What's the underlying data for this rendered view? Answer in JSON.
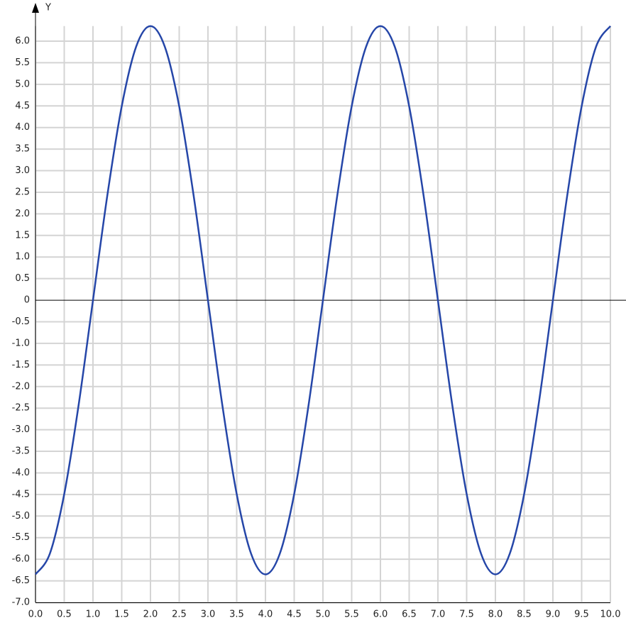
{
  "chart_data": {
    "type": "line",
    "y_label": "Y",
    "x": [
      0,
      0.25,
      0.5,
      0.75,
      1,
      1.25,
      1.5,
      1.75,
      2,
      2.25,
      2.5,
      2.75,
      3,
      3.25,
      3.5,
      3.75,
      4,
      4.25,
      4.5,
      4.75,
      5,
      5.25,
      5.5,
      5.75,
      6,
      6.25,
      6.5,
      6.75,
      7,
      7.25,
      7.5,
      7.75,
      8,
      8.25,
      8.5,
      8.75,
      9,
      9.25,
      9.5,
      9.75,
      10
    ],
    "series": [
      {
        "color": "#2546a8",
        "values": [
          -6.35,
          -5.87,
          -4.49,
          -2.43,
          0,
          2.43,
          4.49,
          5.87,
          6.35,
          5.87,
          4.49,
          2.43,
          0,
          -2.43,
          -4.49,
          -5.87,
          -6.35,
          -5.87,
          -4.49,
          -2.43,
          0,
          2.43,
          4.49,
          5.87,
          6.35,
          5.87,
          4.49,
          2.43,
          0,
          -2.43,
          -4.49,
          -5.87,
          -6.35,
          -5.87,
          -4.49,
          -2.43,
          0,
          2.43,
          4.49,
          5.87,
          6.35
        ]
      }
    ],
    "xlim": [
      0,
      10
    ],
    "ylim": [
      -7,
      6.35
    ],
    "xticks": [
      {
        "value": 0,
        "label": "0.0"
      },
      0.5,
      {
        "value": 1,
        "label": "1.0"
      },
      1.5,
      {
        "value": 2,
        "label": "2.0"
      },
      2.5,
      {
        "value": 3,
        "label": "3.0"
      },
      3.5,
      {
        "value": 4,
        "label": "4.0"
      },
      4.5,
      {
        "value": 5,
        "label": "5.0"
      },
      5.5,
      {
        "value": 6,
        "label": "6.0"
      },
      6.5,
      {
        "value": 7,
        "label": "7.0"
      },
      7.5,
      {
        "value": 8,
        "label": "8.0"
      },
      8.5,
      {
        "value": 9,
        "label": "9.0"
      },
      9.5,
      {
        "value": 10,
        "label": "10.0"
      }
    ],
    "yticks": [
      {
        "value": -7,
        "label": "-7.0"
      },
      -6.5,
      {
        "value": -6,
        "label": "-6.0"
      },
      -5.5,
      {
        "value": -5,
        "label": "-5.0"
      },
      -4.5,
      {
        "value": -4,
        "label": "-4.0"
      },
      -3.5,
      {
        "value": -3,
        "label": "-3.0"
      },
      -2.5,
      {
        "value": -2,
        "label": "-2.0"
      },
      -1.5,
      {
        "value": -1,
        "label": "-1.0"
      },
      -0.5,
      0,
      0.5,
      {
        "value": 1,
        "label": "1.0"
      },
      1.5,
      {
        "value": 2,
        "label": "2.0"
      },
      2.5,
      {
        "value": 3,
        "label": "3.0"
      },
      3.5,
      {
        "value": 4,
        "label": "4.0"
      },
      4.5,
      {
        "value": 5,
        "label": "5.0"
      },
      5.5,
      {
        "value": 6,
        "label": "6.0"
      }
    ],
    "grid": true
  }
}
